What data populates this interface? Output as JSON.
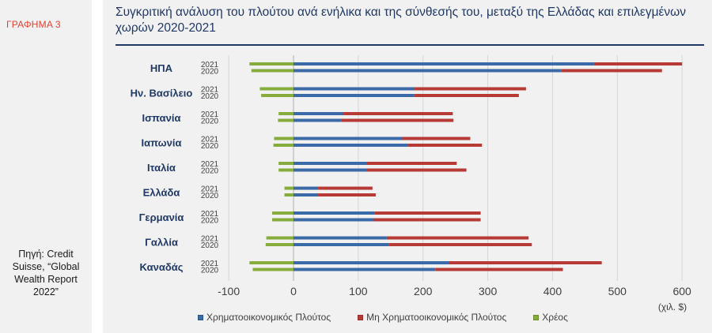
{
  "sidebar": {
    "figure_label": "ΓΡΑΦΗΜΑ 3",
    "source": "Πηγή: Credit Suisse, “Global Wealth Report 2022”"
  },
  "header": {
    "title": "Συγκριτική ανάλυση του πλούτου ανά ενήλικα και της σύνθεσής του, μεταξύ της Ελλάδας και επιλεγμένων χωρών 2020-2021"
  },
  "chart_data": {
    "type": "bar",
    "orientation": "horizontal",
    "stacked": true,
    "unit_label": "(χιλ. $)",
    "xlim": [
      -100,
      600
    ],
    "xticks": [
      "-100",
      "0",
      "100",
      "200",
      "300",
      "400",
      "500",
      "600"
    ],
    "grid": "vertical",
    "legend_position": "bottom",
    "colors": {
      "financial": "#3a6aa8",
      "nonfinancial": "#b83a36",
      "debt": "#86ad3c"
    },
    "series": [
      {
        "key": "financial",
        "name": "Χρηματοοικονομικός Πλούτος"
      },
      {
        "key": "nonfinancial",
        "name": "Μη Χρηματοοικονομικός Πλούτος"
      },
      {
        "key": "debt",
        "name": "Χρέος"
      }
    ],
    "groups": [
      {
        "country": "ΗΠΑ",
        "years": [
          {
            "year": "2021",
            "financial": 464,
            "nonfinancial": 136,
            "debt": -68
          },
          {
            "year": "2020",
            "financial": 414,
            "nonfinancial": 155,
            "debt": -65
          }
        ]
      },
      {
        "country": "Ην. Βασίλειο",
        "years": [
          {
            "year": "2021",
            "financial": 187,
            "nonfinancial": 172,
            "debt": -52
          },
          {
            "year": "2020",
            "financial": 186,
            "nonfinancial": 162,
            "debt": -50
          }
        ]
      },
      {
        "country": "Ισπανία",
        "years": [
          {
            "year": "2021",
            "financial": 77,
            "nonfinancial": 169,
            "debt": -23
          },
          {
            "year": "2020",
            "financial": 74,
            "nonfinancial": 173,
            "debt": -24
          }
        ]
      },
      {
        "country": "Ιαπωνία",
        "years": [
          {
            "year": "2021",
            "financial": 168,
            "nonfinancial": 105,
            "debt": -30
          },
          {
            "year": "2020",
            "financial": 177,
            "nonfinancial": 114,
            "debt": -31
          }
        ]
      },
      {
        "country": "Ιταλία",
        "years": [
          {
            "year": "2021",
            "financial": 113,
            "nonfinancial": 139,
            "debt": -23
          },
          {
            "year": "2020",
            "financial": 113,
            "nonfinancial": 154,
            "debt": -23
          }
        ]
      },
      {
        "country": "Ελλάδα",
        "years": [
          {
            "year": "2021",
            "financial": 38,
            "nonfinancial": 84,
            "debt": -14
          },
          {
            "year": "2020",
            "financial": 38,
            "nonfinancial": 89,
            "debt": -14
          }
        ]
      },
      {
        "country": "Γερμανία",
        "years": [
          {
            "year": "2021",
            "financial": 125,
            "nonfinancial": 164,
            "debt": -33
          },
          {
            "year": "2020",
            "financial": 124,
            "nonfinancial": 165,
            "debt": -33
          }
        ]
      },
      {
        "country": "Γαλλία",
        "years": [
          {
            "year": "2021",
            "financial": 144,
            "nonfinancial": 219,
            "debt": -42
          },
          {
            "year": "2020",
            "financial": 147,
            "nonfinancial": 221,
            "debt": -43
          }
        ]
      },
      {
        "country": "Καναδάς",
        "years": [
          {
            "year": "2021",
            "financial": 240,
            "nonfinancial": 236,
            "debt": -68
          },
          {
            "year": "2020",
            "financial": 219,
            "nonfinancial": 197,
            "debt": -63
          }
        ]
      }
    ]
  }
}
